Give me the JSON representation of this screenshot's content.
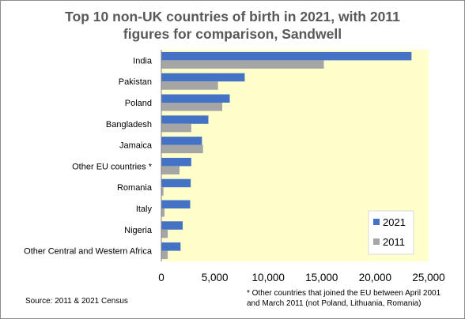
{
  "title_line1": "Top 10 non-UK countries of birth in 2021, with 2011",
  "title_line2": "figures for comparison, Sandwell",
  "source_note": "Source: 2011 & 2021 Census",
  "footnote_line1": "* Other countries that joined the EU  between April 2001",
  "footnote_line2": "and March 2011 (not Poland,  Lithuania, Romania)",
  "colors": {
    "series_2021": "#4472c4",
    "series_2011": "#a5a5a5",
    "plot_background": "#ffffcc",
    "axis_text": "#000000",
    "title_text": "#595959"
  },
  "chart_data": {
    "type": "bar",
    "orientation": "horizontal",
    "title": "Top 10 non-UK countries of birth in 2021, with 2011 figures for comparison, Sandwell",
    "categories": [
      "India",
      "Pakistan",
      "Poland",
      "Bangladesh",
      "Jamaica",
      "Other EU countries *",
      "Romania",
      "Italy",
      "Nigeria",
      "Other Central and Western Africa"
    ],
    "series": [
      {
        "name": "2021",
        "values": [
          23400,
          7800,
          6400,
          4400,
          3800,
          2800,
          2750,
          2700,
          2000,
          1800
        ]
      },
      {
        "name": "2011",
        "values": [
          15200,
          5300,
          5700,
          2800,
          3900,
          1700,
          200,
          300,
          600,
          600
        ]
      }
    ],
    "xlim": [
      0,
      25000
    ],
    "xticks": [
      "0",
      "5,000",
      "10,000",
      "15,000",
      "20,000",
      "25,000"
    ],
    "xtick_values": [
      0,
      5000,
      10000,
      15000,
      20000,
      25000
    ],
    "legend": "bottom-right",
    "grid": false
  }
}
